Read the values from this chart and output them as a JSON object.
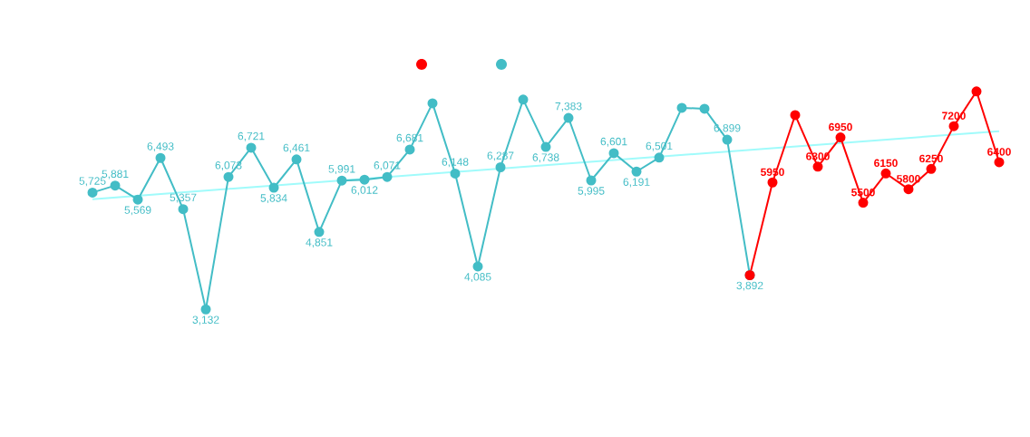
{
  "chart_data": {
    "type": "line",
    "categories": [
      null,
      null,
      null,
      null,
      null,
      null,
      null,
      null,
      null,
      null,
      null,
      null,
      null,
      null,
      null,
      null,
      null,
      null,
      null,
      null,
      null,
      null,
      null,
      null,
      null,
      null,
      null,
      null,
      null,
      null,
      null,
      null,
      null,
      null,
      null,
      null,
      null,
      null,
      null,
      null,
      null
    ],
    "series": [
      {
        "color": "#ff0000",
        "values": [
          null,
          null,
          null,
          null,
          null,
          null,
          null,
          null,
          null,
          null,
          null,
          null,
          null,
          null,
          null,
          null,
          null,
          null,
          null,
          null,
          null,
          null,
          null,
          null,
          null,
          null,
          null,
          null,
          null,
          3892,
          5950,
          7445,
          6300,
          6950,
          5500,
          6150,
          5800,
          6250,
          7200,
          7971,
          6400
        ],
        "value_labels": [
          null,
          null,
          null,
          null,
          null,
          null,
          null,
          null,
          null,
          null,
          null,
          null,
          null,
          null,
          null,
          null,
          null,
          null,
          null,
          null,
          null,
          null,
          null,
          null,
          null,
          null,
          null,
          null,
          null,
          null,
          "5950",
          null,
          "6300",
          "6950",
          "5500",
          "6150",
          "5800",
          "6250",
          "7200",
          null,
          "6400"
        ]
      },
      {
        "color": "#43bdc6",
        "values": [
          5725,
          5881,
          5569,
          6493,
          5357,
          3132,
          6073,
          6721,
          5834,
          6461,
          4851,
          5991,
          6012,
          6071,
          6681,
          7708,
          6148,
          4085,
          6287,
          7789,
          6738,
          7383,
          5995,
          6601,
          6191,
          6501,
          7607,
          7587,
          6899,
          3892,
          null,
          null,
          null,
          null,
          null,
          null,
          null,
          null,
          null,
          null,
          null
        ],
        "value_labels": [
          "5,725",
          "5,881",
          "5,569",
          "6,493",
          "5,357",
          "3,132",
          "6,073",
          "6,721",
          "5,834",
          "6,461",
          "4,851",
          "5,991",
          "6,012",
          "6,071",
          "6,681",
          null,
          "6,148",
          "4,085",
          "6,287",
          null,
          "6,738",
          "7,383",
          "5,995",
          "6,601",
          "6,191",
          "6,501",
          null,
          null,
          "6,899",
          "3,892",
          null,
          null,
          null,
          null,
          null,
          null,
          null,
          null,
          null,
          null,
          null
        ]
      },
      {
        "type": "line",
        "color": "#a0fbfb",
        "marker": "none",
        "values": [
          5579,
          null,
          null,
          null,
          null,
          null,
          null,
          null,
          null,
          null,
          null,
          null,
          null,
          null,
          null,
          null,
          null,
          null,
          null,
          null,
          null,
          null,
          null,
          null,
          null,
          null,
          null,
          null,
          null,
          null,
          null,
          null,
          null,
          null,
          null,
          null,
          null,
          null,
          null,
          null,
          7089
        ]
      }
    ],
    "tick_labels": false,
    "marker": "circle",
    "line_style": "solid"
  }
}
